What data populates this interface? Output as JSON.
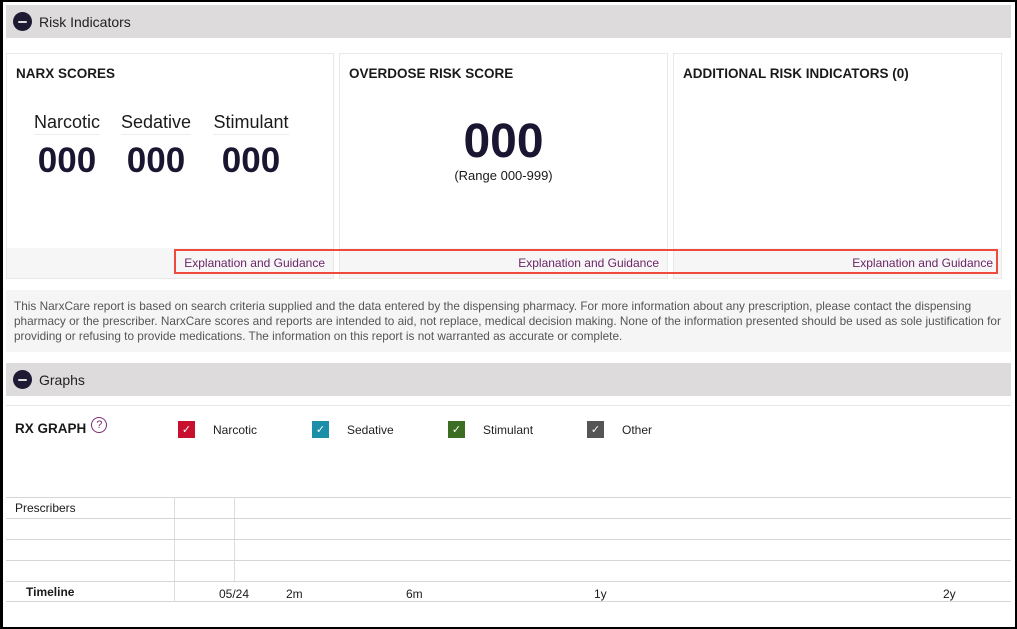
{
  "risk_indicators": {
    "title": "Risk Indicators",
    "narx": {
      "title": "NARX SCORES",
      "scores": [
        {
          "label": "Narcotic",
          "value": "000"
        },
        {
          "label": "Sedative",
          "value": "000"
        },
        {
          "label": "Stimulant",
          "value": "000"
        }
      ],
      "link": "Explanation and Guidance"
    },
    "overdose": {
      "title": "OVERDOSE RISK SCORE",
      "value": "000",
      "range": "(Range 000-999)",
      "link": "Explanation and Guidance"
    },
    "additional": {
      "title": "ADDITIONAL RISK INDICATORS (0)",
      "link": "Explanation and Guidance"
    }
  },
  "disclaimer": "This NarxCare report is based on search criteria supplied and the data entered by the dispensing pharmacy. For more information about any prescription, please contact the dispensing pharmacy or the prescriber. NarxCare scores and reports are intended to aid, not replace, medical decision making. None of the information presented should be used as sole justification for providing or refusing to provide medications. The information on this report is not warranted as accurate or complete.",
  "graphs": {
    "title": "Graphs",
    "rx_graph_title": "RX GRAPH",
    "legend": [
      {
        "label": "Narcotic",
        "color": "#c8102e",
        "checked": true
      },
      {
        "label": "Sedative",
        "color": "#1b8fa8",
        "checked": true
      },
      {
        "label": "Stimulant",
        "color": "#3b6e22",
        "checked": true
      },
      {
        "label": "Other",
        "color": "#555555",
        "checked": true
      }
    ],
    "prescribers_label": "Prescribers",
    "timeline_label": "Timeline",
    "timeline_ticks": [
      "05/24",
      "2m",
      "6m",
      "1y",
      "2y"
    ]
  }
}
